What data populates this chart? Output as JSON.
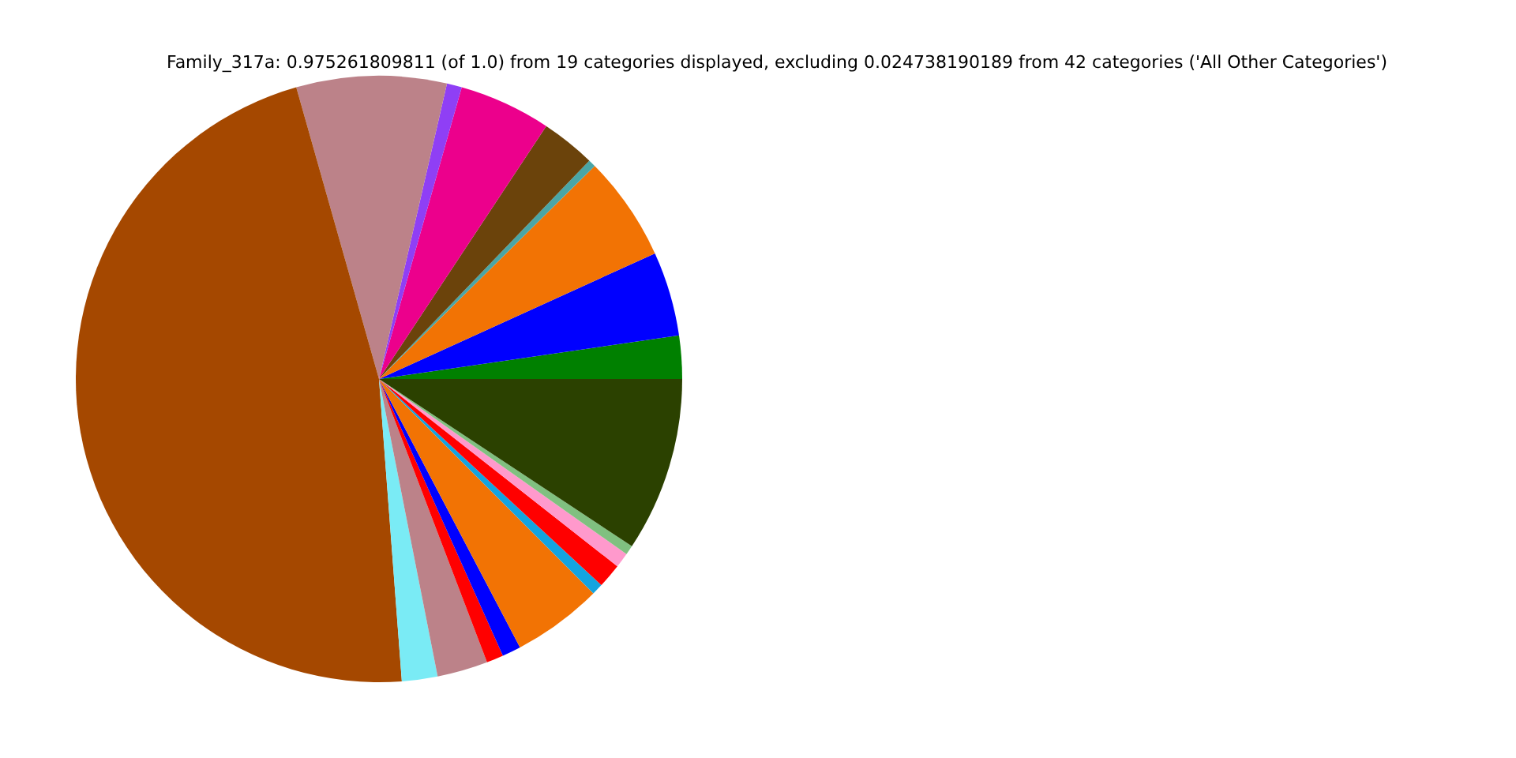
{
  "chart_data": {
    "type": "pie",
    "title": "Family_317a: 0.975261809811 (of 1.0) from 19 categories displayed, excluding 0.024738190189 from 42 categories ('All Other Categories')",
    "categories": [
      null,
      null,
      null,
      null,
      null,
      null,
      null,
      null,
      null,
      null,
      null,
      null,
      null,
      null,
      null,
      null,
      null,
      null,
      null
    ],
    "values": [
      2.3,
      4.5,
      5.6,
      0.4,
      2.9,
      4.9,
      0.8,
      8.0,
      46.8,
      1.9,
      2.7,
      0.9,
      1.0,
      4.8,
      0.6,
      1.3,
      0.8,
      0.5,
      9.3
    ],
    "colors": [
      "#008000",
      "#0000ff",
      "#f27304",
      "#4aa6a6",
      "#6b430b",
      "#ec008c",
      "#8f3ff5",
      "#bc8289",
      "#a54800",
      "#7aebf5",
      "#bc8289",
      "#ff0000",
      "#0000ff",
      "#f27304",
      "#13a4e0",
      "#ff0000",
      "#ff99cc",
      "#80c080",
      "#2b4100"
    ]
  }
}
